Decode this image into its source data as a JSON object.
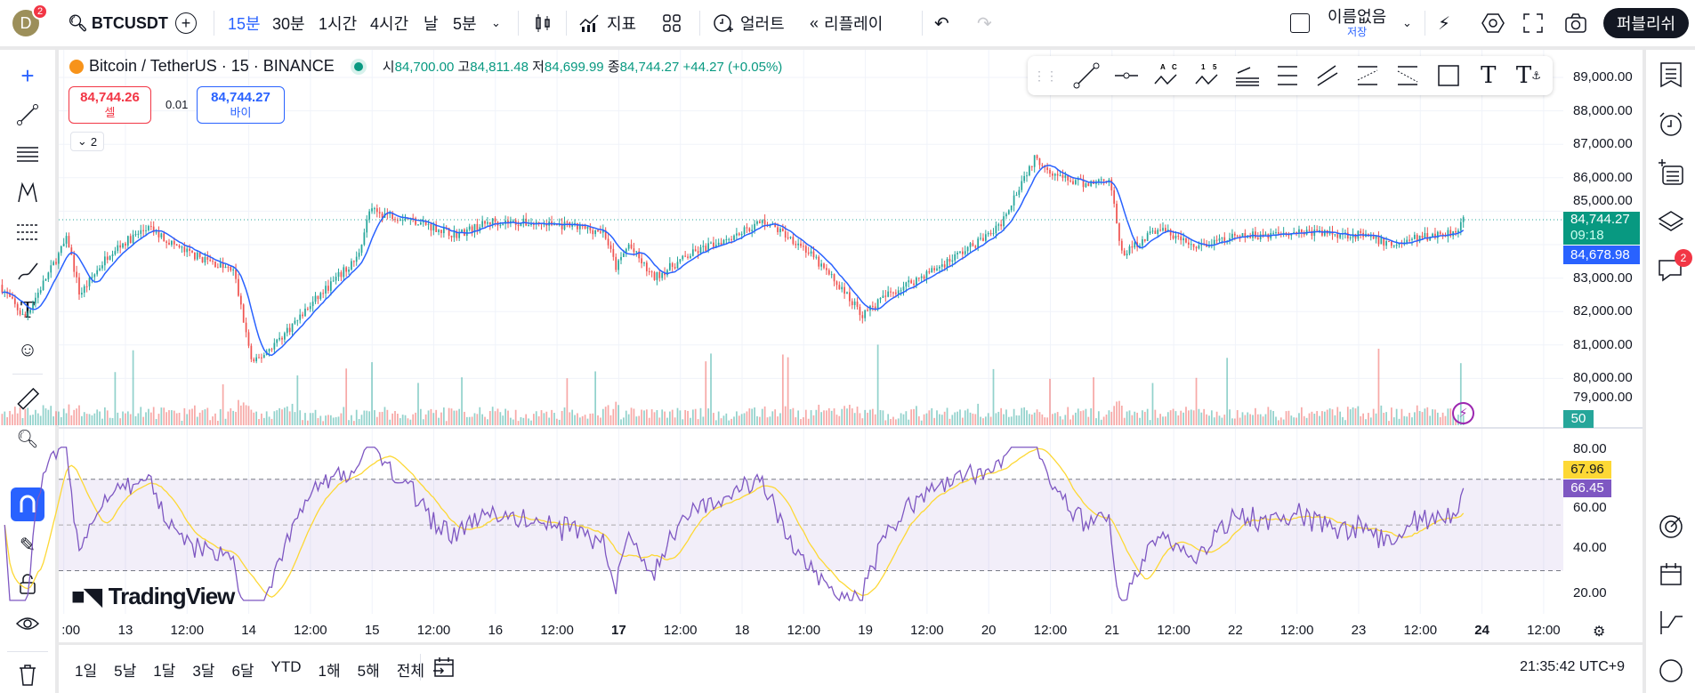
{
  "topbar": {
    "avatar_letter": "D",
    "avatar_badge": "2",
    "symbol": "BTCUSDT",
    "intervals": [
      "15분",
      "30분",
      "1시간",
      "4시간",
      "날",
      "5분"
    ],
    "active_interval": "15분",
    "indicators": "지표",
    "alert": "얼러트",
    "replay": "리플레이",
    "layout_name": "이름없음",
    "save": "저장",
    "publish": "퍼블리쉬"
  },
  "legend": {
    "title": "Bitcoin / TetherUS · 15 · BINANCE",
    "o_label": "시",
    "o": "84,700.00",
    "h_label": "고",
    "h": "84,811.48",
    "l_label": "저",
    "l": "84,699.99",
    "c_label": "종",
    "c": "84,744.27",
    "change": "+44.27 (+0.05%)",
    "sell_price": "84,744.26",
    "sell_label": "셀",
    "spread": "0.01",
    "buy_price": "84,744.27",
    "buy_label": "바이",
    "indicators_count": "2"
  },
  "price_axis": {
    "labels": [
      "89,000.00",
      "88,000.00",
      "87,000.00",
      "86,000.00",
      "85,000.00",
      "83,000.00",
      "82,000.00",
      "81,000.00",
      "80,000.00",
      "79,000.00"
    ],
    "current_price": "84,744.27",
    "countdown": "09:18",
    "ma_value": "84,678.98",
    "volume_badge": "50"
  },
  "rsi_axis": {
    "labels": [
      "80.00",
      "60.00",
      "40.00",
      "20.00"
    ],
    "rsi_ma": "67.96",
    "rsi": "66.45"
  },
  "time_axis": [
    ":00",
    "13",
    "12:00",
    "14",
    "12:00",
    "15",
    "12:00",
    "16",
    "12:00",
    "17",
    "12:00",
    "18",
    "12:00",
    "19",
    "12:00",
    "20",
    "12:00",
    "21",
    "12:00",
    "22",
    "12:00",
    "23",
    "12:00",
    "24",
    "12:00"
  ],
  "watermark": "TradingView",
  "bottom": {
    "ranges": [
      "1일",
      "5날",
      "1달",
      "3달",
      "6달",
      "YTD",
      "1해",
      "5해",
      "전체"
    ],
    "clock": "21:35:42 UTC+9"
  },
  "right_badge": "2",
  "colors": {
    "up": "#26a69a",
    "down": "#ef5350",
    "ma": "#2962ff",
    "rsi": "#7e57c2",
    "rsi_ma": "#fdd835",
    "accent": "#2962ff"
  },
  "chart_data": {
    "type": "candlestick",
    "symbol": "BTCUSDT",
    "interval": "15",
    "x_start_day": 12.0,
    "x_end_day": 23.87,
    "price_path": [
      [
        12.0,
        82800
      ],
      [
        12.2,
        81800
      ],
      [
        12.45,
        83500
      ],
      [
        12.55,
        84200
      ],
      [
        12.65,
        82500
      ],
      [
        12.9,
        83800
      ],
      [
        13.2,
        84500
      ],
      [
        13.5,
        83800
      ],
      [
        13.9,
        83200
      ],
      [
        14.05,
        80400
      ],
      [
        14.3,
        81300
      ],
      [
        14.6,
        82500
      ],
      [
        14.9,
        83600
      ],
      [
        15.0,
        85000
      ],
      [
        15.3,
        84800
      ],
      [
        15.7,
        84300
      ],
      [
        16.0,
        84700
      ],
      [
        16.5,
        84600
      ],
      [
        16.9,
        84400
      ],
      [
        17.0,
        83300
      ],
      [
        17.1,
        84000
      ],
      [
        17.3,
        83000
      ],
      [
        17.6,
        83700
      ],
      [
        17.9,
        84200
      ],
      [
        18.2,
        84700
      ],
      [
        18.5,
        84000
      ],
      [
        18.8,
        82800
      ],
      [
        19.0,
        81900
      ],
      [
        19.2,
        82500
      ],
      [
        19.6,
        83300
      ],
      [
        19.9,
        84000
      ],
      [
        20.1,
        84500
      ],
      [
        20.3,
        86000
      ],
      [
        20.4,
        86600
      ],
      [
        20.6,
        86000
      ],
      [
        20.8,
        85800
      ],
      [
        21.0,
        86000
      ],
      [
        21.1,
        83700
      ],
      [
        21.4,
        84500
      ],
      [
        21.7,
        83900
      ],
      [
        22.0,
        84200
      ],
      [
        22.5,
        84400
      ],
      [
        23.0,
        84300
      ],
      [
        23.3,
        84000
      ],
      [
        23.5,
        84200
      ],
      [
        23.8,
        84400
      ],
      [
        23.87,
        84744
      ]
    ],
    "ylim": [
      79000,
      89500
    ],
    "rsi_ylim": [
      15,
      85
    ],
    "rsi_bands": [
      70,
      50,
      30
    ],
    "last_rsi": 66.45,
    "last_rsi_ma": 67.96
  }
}
